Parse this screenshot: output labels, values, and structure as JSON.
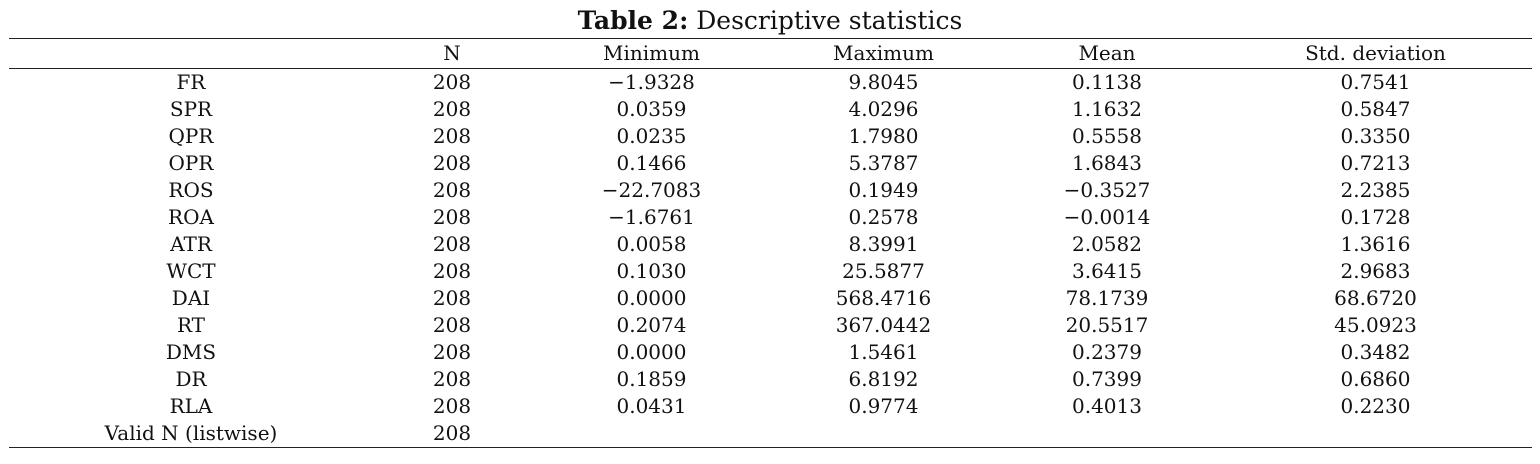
{
  "caption": {
    "label": "Table 2:",
    "text": "Descriptive statistics"
  },
  "columns": [
    "",
    "N",
    "Minimum",
    "Maximum",
    "Mean",
    "Std. deviation"
  ],
  "rows": [
    [
      "FR",
      "208",
      "−1.9328",
      "9.8045",
      "0.1138",
      "0.7541"
    ],
    [
      "SPR",
      "208",
      "0.0359",
      "4.0296",
      "1.1632",
      "0.5847"
    ],
    [
      "QPR",
      "208",
      "0.0235",
      "1.7980",
      "0.5558",
      "0.3350"
    ],
    [
      "OPR",
      "208",
      "0.1466",
      "5.3787",
      "1.6843",
      "0.7213"
    ],
    [
      "ROS",
      "208",
      "−22.7083",
      "0.1949",
      "−0.3527",
      "2.2385"
    ],
    [
      "ROA",
      "208",
      "−1.6761",
      "0.2578",
      "−0.0014",
      "0.1728"
    ],
    [
      "ATR",
      "208",
      "0.0058",
      "8.3991",
      "2.0582",
      "1.3616"
    ],
    [
      "WCT",
      "208",
      "0.1030",
      "25.5877",
      "3.6415",
      "2.9683"
    ],
    [
      "DAI",
      "208",
      "0.0000",
      "568.4716",
      "78.1739",
      "68.6720"
    ],
    [
      "RT",
      "208",
      "0.2074",
      "367.0442",
      "20.5517",
      "45.0923"
    ],
    [
      "DMS",
      "208",
      "0.0000",
      "1.5461",
      "0.2379",
      "0.3482"
    ],
    [
      "DR",
      "208",
      "0.1859",
      "6.8192",
      "0.7399",
      "0.6860"
    ],
    [
      "RLA",
      "208",
      "0.0431",
      "0.9774",
      "0.4013",
      "0.2230"
    ],
    [
      "Valid N (listwise)",
      "208",
      "",
      "",
      "",
      ""
    ]
  ]
}
